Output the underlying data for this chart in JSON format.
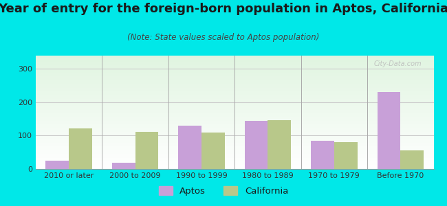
{
  "title": "Year of entry for the foreign-born population in Aptos, California",
  "subtitle": "(Note: State values scaled to Aptos population)",
  "categories": [
    "2010 or later",
    "2000 to 2009",
    "1990 to 1999",
    "1980 to 1989",
    "1970 to 1979",
    "Before 1970"
  ],
  "aptos_values": [
    25,
    18,
    130,
    145,
    85,
    230
  ],
  "california_values": [
    122,
    112,
    110,
    147,
    80,
    55
  ],
  "aptos_color": "#c8a0d8",
  "california_color": "#b8c88a",
  "background_color": "#00e8e8",
  "ylim": [
    0,
    340
  ],
  "yticks": [
    0,
    100,
    200,
    300
  ],
  "bar_width": 0.35,
  "title_fontsize": 13,
  "subtitle_fontsize": 8.5,
  "tick_fontsize": 8,
  "legend_fontsize": 9.5
}
